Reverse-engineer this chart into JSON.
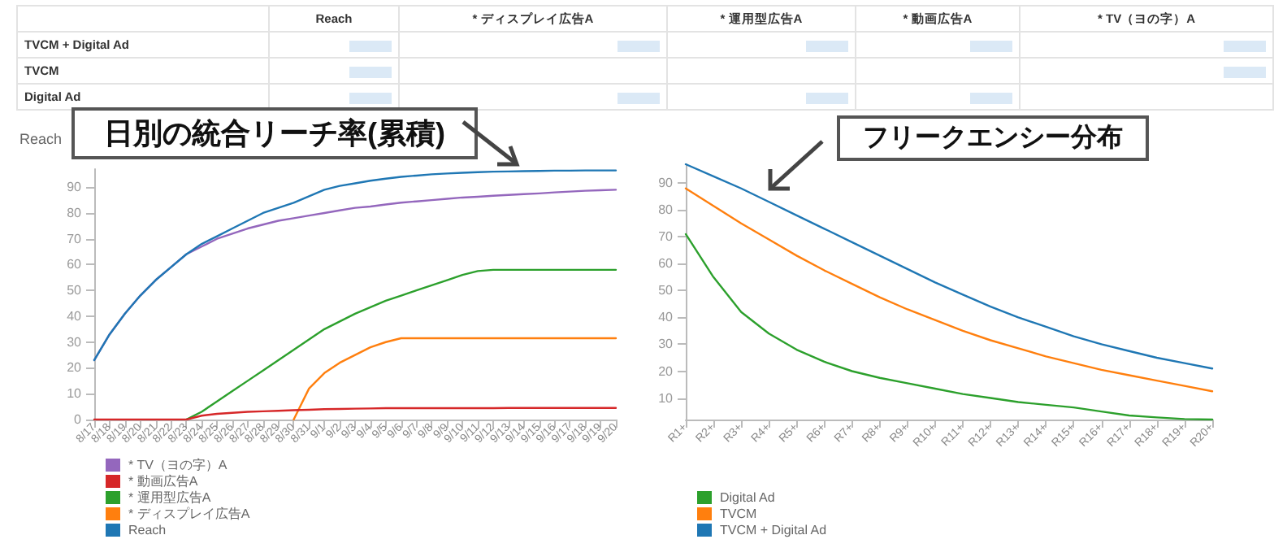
{
  "chart_data": [
    {
      "type": "other",
      "categories": [
        "Reach",
        "* ディスプレイ広告A",
        "* 運用型広告A",
        "* 動画広告A",
        "* TV（ヨの字）A"
      ],
      "y_categories": [
        "TVCM + Digital Ad",
        "TVCM",
        "Digital Ad"
      ]
    },
    {
      "type": "line",
      "ylabel": "Reach",
      "annotations": [
        "日別の統合リーチ率(累積)"
      ],
      "legend": "bottom left",
      "marker": "none",
      "grid": false,
      "ylim": [
        0,
        97
      ],
      "yticks": [
        0,
        10,
        20,
        30,
        40,
        50,
        60,
        70,
        80,
        90
      ],
      "categories": [
        "8/17",
        "8/18",
        "8/19",
        "8/20",
        "8/21",
        "8/22",
        "8/23",
        "8/24",
        "8/25",
        "8/26",
        "8/27",
        "8/28",
        "8/29",
        "8/30",
        "8/31",
        "9/1",
        "9/2",
        "9/3",
        "9/4",
        "9/5",
        "9/6",
        "9/7",
        "9/8",
        "9/9",
        "9/10",
        "9/11",
        "9/12",
        "9/13",
        "9/14",
        "9/15",
        "9/16",
        "9/17",
        "9/18",
        "9/19",
        "9/20"
      ],
      "series": [
        {
          "name": "* TV（ヨの字）A",
          "color": "#9467bd",
          "values": [
            23,
            33,
            41,
            48,
            54,
            59,
            64,
            67,
            70,
            72,
            74,
            75.5,
            77,
            78,
            79,
            80,
            81,
            82,
            82.5,
            83.3,
            84,
            84.5,
            85,
            85.5,
            86,
            86.3,
            86.7,
            87,
            87.3,
            87.6,
            88,
            88.3,
            88.6,
            88.8,
            89
          ]
        },
        {
          "name": "* 動画広告A",
          "color": "#d62728",
          "values": [
            0,
            0,
            0,
            0,
            0,
            0,
            0,
            1.5,
            2.2,
            2.6,
            3,
            3.2,
            3.4,
            3.6,
            3.8,
            4,
            4.1,
            4.2,
            4.3,
            4.4,
            4.4,
            4.4,
            4.4,
            4.4,
            4.4,
            4.4,
            4.4,
            4.5,
            4.5,
            4.5,
            4.5,
            4.5,
            4.5,
            4.5,
            4.5
          ]
        },
        {
          "name": "* 運用型広告A",
          "color": "#2ca02c",
          "values": [
            null,
            null,
            null,
            null,
            null,
            null,
            0,
            3,
            7,
            11,
            15,
            19,
            23,
            27,
            31,
            35,
            38,
            41,
            43.5,
            46,
            48,
            50,
            52,
            54,
            56,
            57.5,
            58,
            58,
            58,
            58,
            58,
            58,
            58,
            58,
            58
          ]
        },
        {
          "name": "* ディスプレイ広告A",
          "color": "#ff7f0e",
          "values": [
            null,
            null,
            null,
            null,
            null,
            null,
            null,
            null,
            null,
            null,
            null,
            null,
            null,
            0,
            12,
            18,
            22,
            25,
            28,
            30,
            31.5,
            31.5,
            31.5,
            31.5,
            31.5,
            31.5,
            31.5,
            31.5,
            31.5,
            31.5,
            31.5,
            31.5,
            31.5,
            31.5,
            31.5
          ]
        },
        {
          "name": "Reach",
          "color": "#1f77b4",
          "values": [
            23,
            33,
            41,
            48,
            54,
            59,
            64,
            68,
            71,
            74,
            77,
            80,
            82,
            84,
            86.5,
            89,
            90.5,
            91.5,
            92.5,
            93.3,
            94,
            94.5,
            95,
            95.3,
            95.6,
            95.8,
            96,
            96.1,
            96.2,
            96.3,
            96.4,
            96.4,
            96.5,
            96.5,
            96.5
          ]
        }
      ]
    },
    {
      "type": "line",
      "annotations": [
        "フリークエンシー分布"
      ],
      "legend": "bottom left",
      "marker": "none",
      "grid": false,
      "ylim": [
        2,
        97
      ],
      "yticks": [
        10,
        20,
        30,
        40,
        50,
        60,
        70,
        80,
        90
      ],
      "categories": [
        "R1+",
        "R2+",
        "R3+",
        "R4+",
        "R5+",
        "R6+",
        "R7+",
        "R8+",
        "R9+",
        "R10+",
        "R11+",
        "R12+",
        "R13+",
        "R14+",
        "R15+",
        "R16+",
        "R17+",
        "R18+",
        "R19+",
        "R20+"
      ],
      "series": [
        {
          "name": "Digital Ad",
          "color": "#2ca02c",
          "values": [
            71,
            55,
            42,
            34,
            28,
            23.5,
            20,
            17.5,
            15.5,
            13.5,
            11.5,
            10,
            8.5,
            7.5,
            6.5,
            5,
            3.5,
            2.8,
            2.2,
            2
          ]
        },
        {
          "name": "TVCM",
          "color": "#ff7f0e",
          "values": [
            88,
            81.5,
            75,
            69,
            63,
            57.5,
            52.5,
            47.5,
            43,
            39,
            35,
            31.5,
            28.5,
            25.5,
            23,
            20.5,
            18.5,
            16.5,
            14.5,
            12.5
          ]
        },
        {
          "name": "TVCM + Digital Ad",
          "color": "#1f77b4",
          "values": [
            97,
            92.5,
            88,
            83,
            78,
            73,
            68,
            63,
            58,
            53,
            48.5,
            44,
            40,
            36.5,
            33,
            30,
            27.5,
            25,
            23,
            21
          ]
        }
      ]
    }
  ]
}
